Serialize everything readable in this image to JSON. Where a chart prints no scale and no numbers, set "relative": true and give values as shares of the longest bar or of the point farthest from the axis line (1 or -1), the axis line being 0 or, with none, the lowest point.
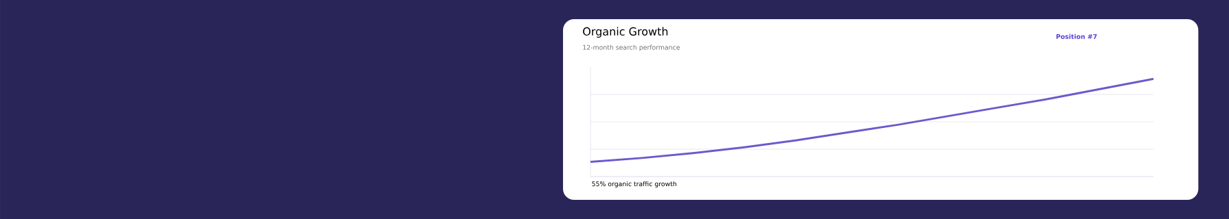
{
  "chart_data": {
    "type": "line",
    "title": "Organic Growth",
    "subtitle": "12-month search performance",
    "relative": true,
    "grid": "y",
    "annotations": [
      "Position #7",
      "55% organic traffic growth"
    ],
    "categories": [
      null,
      null,
      null,
      null,
      null,
      null,
      null,
      null,
      null,
      null,
      null,
      null
    ],
    "series": [
      {
        "color": "#6a5acd",
        "values": [
          0.15,
          0.19,
          0.24,
          0.3,
          0.37,
          0.45,
          0.53,
          0.62,
          0.71,
          0.8,
          0.9,
          1.0
        ]
      }
    ]
  }
}
